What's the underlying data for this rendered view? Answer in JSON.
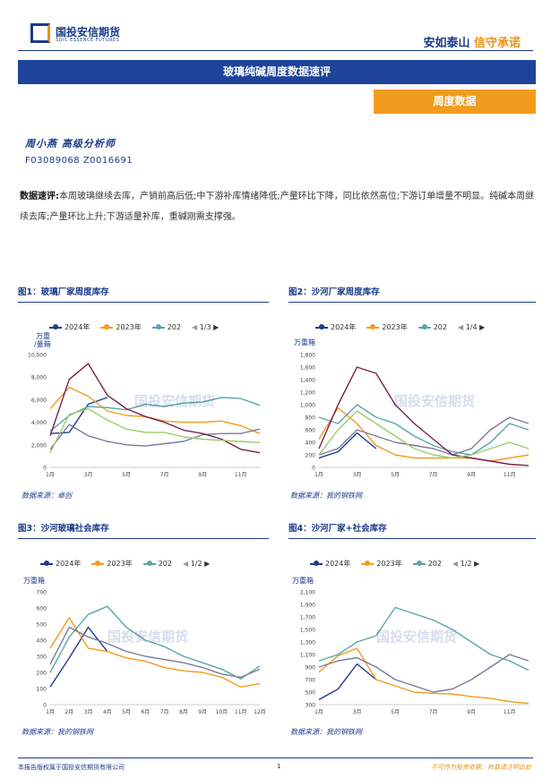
{
  "header": {
    "logo_text": "国投安信期货",
    "logo_sub": "SDIC ESSENCE FUTURES",
    "slogan_a": "安如泰山",
    "slogan_b": "信守承诺",
    "colors": {
      "brand": "#1e4399",
      "accent": "#f29c1f"
    }
  },
  "banner": "玻璃纯碱周度数据速评",
  "tag": "周度数据",
  "analyst": "周小燕 高级分析师",
  "cert": "F03089068 Z0016691",
  "comment": {
    "label": "数据速评:",
    "text": "本周玻璃继续去库，产销前高后低;中下游补库情绪降低;产量环比下降，同比依然高位;下游订单增量不明显。纯碱本周继续去库;产量环比上升;下游适量补库，重碱刚需支撑强。"
  },
  "watermark": "国投安信期货",
  "figures": [
    {
      "title": "图1：玻璃厂家周度库存",
      "unit_top": "万重",
      "unit_bottom": "/量箱",
      "legend": [
        "2024年",
        "2023年",
        "202"
      ],
      "pager": "1/3",
      "source": "数据来源：卓创"
    },
    {
      "title": "图2：沙河厂家周度库存",
      "unit_top": "万重箱",
      "unit_bottom": "",
      "legend": [
        "2024年",
        "2023年",
        "202"
      ],
      "pager": "1/4",
      "source": "数据来源：我的钢铁网"
    },
    {
      "title": "图3：沙河玻璃社会库存",
      "unit_top": "万重箱",
      "unit_bottom": "",
      "legend": [
        "2024年",
        "2023年",
        "202"
      ],
      "pager": "1/2",
      "source": "数据来源：我的钢铁网"
    },
    {
      "title": "图4：沙河厂家+社会库存",
      "unit_top": "万重箱",
      "unit_bottom": "",
      "legend": [
        "2024年",
        "2023年",
        "202"
      ],
      "pager": "1/2",
      "source": "数据来源：我的钢铁网"
    }
  ],
  "chart_data": [
    {
      "type": "line",
      "x": [
        "1月",
        "2月",
        "3月",
        "4月",
        "5月",
        "6月",
        "7月",
        "8月",
        "9月",
        "10月",
        "11月",
        "12月"
      ],
      "x_ticks": [
        "1月",
        "3月",
        "5月",
        "7月",
        "9月",
        "11月"
      ],
      "ylim": [
        0,
        10000
      ],
      "y_ticks": [
        "0",
        "2,000",
        "4,000",
        "6,000",
        "8,000",
        "10,000"
      ],
      "series": [
        {
          "name": "2024年",
          "color": "#1e3c8c",
          "values": [
            3000,
            3100,
            5600,
            6200,
            null,
            null,
            null,
            null,
            null,
            null,
            null,
            null
          ]
        },
        {
          "name": "2023年",
          "color": "#f29c1f",
          "values": [
            5200,
            7100,
            6300,
            5000,
            4600,
            4500,
            4100,
            4000,
            4000,
            4100,
            3700,
            3000
          ]
        },
        {
          "name": "202",
          "color": "#5aa6a6",
          "values": [
            3200,
            4600,
            5400,
            5300,
            5100,
            5600,
            5400,
            5700,
            5800,
            6200,
            6100,
            5500
          ]
        },
        {
          "name": "",
          "color": "#7b7b9c",
          "values": [
            1600,
            3800,
            2800,
            2300,
            2000,
            1900,
            2100,
            2300,
            2900,
            3000,
            3000,
            3400
          ]
        },
        {
          "name": "",
          "color": "#7a1f4a",
          "values": [
            2800,
            7800,
            9200,
            6400,
            5200,
            4500,
            4000,
            3300,
            3000,
            2500,
            1600,
            1300
          ]
        },
        {
          "name": "",
          "color": "#9acd6a",
          "values": [
            1300,
            4700,
            5200,
            4200,
            3400,
            3100,
            3100,
            2700,
            2500,
            2400,
            2300,
            2200
          ]
        }
      ]
    },
    {
      "type": "line",
      "x": [
        "1月",
        "2月",
        "3月",
        "4月",
        "5月",
        "6月",
        "7月",
        "8月",
        "9月",
        "10月",
        "11月",
        "12月"
      ],
      "x_ticks": [
        "1月",
        "3月",
        "5月",
        "7月",
        "9月",
        "11月"
      ],
      "ylim": [
        0,
        1800
      ],
      "y_ticks": [
        "0",
        "200",
        "400",
        "600",
        "800",
        "1,000",
        "1,200",
        "1,400",
        "1,600",
        "1,800"
      ],
      "series": [
        {
          "name": "2024年",
          "color": "#1e3c8c",
          "values": [
            150,
            250,
            550,
            300,
            null,
            null,
            null,
            null,
            null,
            null,
            null,
            null
          ]
        },
        {
          "name": "2023年",
          "color": "#f29c1f",
          "values": [
            450,
            950,
            700,
            350,
            200,
            150,
            150,
            150,
            150,
            100,
            150,
            200
          ]
        },
        {
          "name": "202",
          "color": "#5aa6a6",
          "values": [
            800,
            700,
            1000,
            800,
            700,
            500,
            350,
            250,
            200,
            400,
            700,
            600
          ]
        },
        {
          "name": "",
          "color": "#7b7b9c",
          "values": [
            200,
            300,
            600,
            500,
            400,
            350,
            300,
            200,
            300,
            600,
            800,
            700
          ]
        },
        {
          "name": "",
          "color": "#7a1f4a",
          "values": [
            300,
            1000,
            1600,
            1500,
            1000,
            700,
            450,
            200,
            150,
            100,
            50,
            30
          ]
        },
        {
          "name": "",
          "color": "#9acd6a",
          "values": [
            200,
            600,
            900,
            700,
            500,
            300,
            200,
            150,
            200,
            300,
            400,
            300
          ]
        }
      ]
    },
    {
      "type": "line",
      "x": [
        "1月",
        "2月",
        "3月",
        "4月",
        "5月",
        "6月",
        "7月",
        "8月",
        "9月",
        "10月",
        "11月",
        "12月"
      ],
      "x_ticks": [
        "1月",
        "2月",
        "3月",
        "4月",
        "5月",
        "6月",
        "7月",
        "8月",
        "9月",
        "10月",
        "11月",
        "12月"
      ],
      "ylim": [
        0,
        700
      ],
      "y_ticks": [
        "0",
        "100",
        "200",
        "300",
        "400",
        "500",
        "600",
        "700"
      ],
      "series": [
        {
          "name": "2024年",
          "color": "#1e3c8c",
          "values": [
            110,
            290,
            480,
            330,
            null,
            null,
            null,
            null,
            null,
            null,
            null,
            null
          ]
        },
        {
          "name": "2023年",
          "color": "#f29c1f",
          "values": [
            350,
            540,
            350,
            330,
            290,
            270,
            230,
            210,
            200,
            170,
            110,
            130
          ]
        },
        {
          "name": "202",
          "color": "#5aa6a6",
          "values": [
            200,
            420,
            560,
            610,
            480,
            400,
            360,
            300,
            260,
            220,
            160,
            240
          ]
        },
        {
          "name": "",
          "color": "#7b7b9c",
          "values": [
            250,
            480,
            420,
            380,
            330,
            300,
            280,
            260,
            230,
            190,
            170,
            220
          ]
        }
      ]
    },
    {
      "type": "line",
      "x": [
        "1月",
        "2月",
        "3月",
        "4月",
        "5月",
        "6月",
        "7月",
        "8月",
        "9月",
        "10月",
        "11月",
        "12月"
      ],
      "x_ticks": [
        "1月",
        "3月",
        "5月",
        "7月",
        "9月",
        "11月"
      ],
      "ylim": [
        300,
        2100
      ],
      "y_ticks": [
        "300",
        "500",
        "700",
        "900",
        "1,100",
        "1,300",
        "1,500",
        "1,700",
        "1,900",
        "2,100"
      ],
      "series": [
        {
          "name": "2024年",
          "color": "#1e3c8c",
          "values": [
            380,
            550,
            950,
            700,
            null,
            null,
            null,
            null,
            null,
            null,
            null,
            null
          ]
        },
        {
          "name": "2023年",
          "color": "#f29c1f",
          "values": [
            820,
            1080,
            1200,
            700,
            600,
            500,
            480,
            470,
            430,
            400,
            350,
            320
          ]
        },
        {
          "name": "202",
          "color": "#5aa6a6",
          "values": [
            1000,
            1100,
            1300,
            1400,
            1850,
            1750,
            1650,
            1500,
            1300,
            1100,
            1000,
            850
          ]
        },
        {
          "name": "",
          "color": "#7b7b9c",
          "values": [
            900,
            1000,
            1050,
            900,
            700,
            600,
            500,
            550,
            700,
            900,
            1100,
            1000
          ]
        }
      ]
    }
  ]
}
